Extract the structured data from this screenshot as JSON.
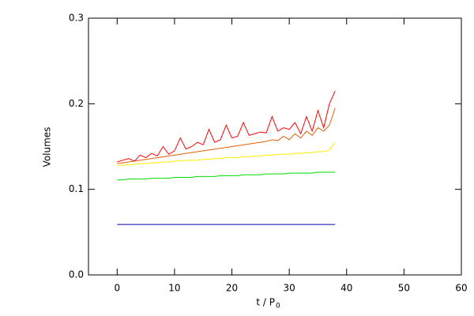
{
  "chart_data": {
    "type": "line",
    "xlabel": "t / P",
    "xlabel_subscript": "0",
    "ylabel": "Volumes",
    "xlim": [
      -5,
      60
    ],
    "xticks": [
      0,
      10,
      20,
      30,
      40,
      50,
      60
    ],
    "ylim": [
      0,
      0.3
    ],
    "yticks": [
      {
        "value": 0,
        "label": "0.0"
      },
      0.1,
      0.2,
      0.3
    ],
    "x": [
      0,
      1,
      2,
      3,
      4,
      5,
      6,
      7,
      8,
      9,
      10,
      11,
      12,
      13,
      14,
      15,
      16,
      17,
      18,
      19,
      20,
      21,
      22,
      23,
      24,
      25,
      26,
      27,
      28,
      29,
      30,
      31,
      32,
      33,
      34,
      35,
      36,
      37,
      38
    ],
    "series": [
      {
        "color": "#ff0000",
        "values": [
          0.132,
          0.134,
          0.136,
          0.133,
          0.14,
          0.137,
          0.142,
          0.139,
          0.15,
          0.141,
          0.145,
          0.16,
          0.147,
          0.15,
          0.155,
          0.152,
          0.17,
          0.155,
          0.158,
          0.175,
          0.16,
          0.162,
          0.178,
          0.163,
          0.165,
          0.167,
          0.166,
          0.185,
          0.168,
          0.172,
          0.17,
          0.178,
          0.165,
          0.185,
          0.168,
          0.192,
          0.172,
          0.2,
          0.215
        ]
      },
      {
        "color": "#e06000",
        "values": [
          0.13,
          0.131,
          0.132,
          0.133,
          0.134,
          0.135,
          0.136,
          0.137,
          0.138,
          0.139,
          0.14,
          0.141,
          0.142,
          0.143,
          0.144,
          0.145,
          0.146,
          0.147,
          0.148,
          0.149,
          0.15,
          0.151,
          0.152,
          0.153,
          0.154,
          0.155,
          0.156,
          0.158,
          0.157,
          0.162,
          0.158,
          0.165,
          0.16,
          0.168,
          0.163,
          0.172,
          0.168,
          0.175,
          0.195
        ]
      },
      {
        "color": "#ffee00",
        "values": [
          0.128,
          0.128,
          0.129,
          0.129,
          0.13,
          0.13,
          0.131,
          0.131,
          0.132,
          0.132,
          0.133,
          0.133,
          0.134,
          0.134,
          0.134,
          0.135,
          0.135,
          0.136,
          0.136,
          0.137,
          0.137,
          0.137,
          0.138,
          0.138,
          0.139,
          0.139,
          0.14,
          0.14,
          0.141,
          0.141,
          0.141,
          0.142,
          0.142,
          0.143,
          0.143,
          0.144,
          0.144,
          0.146,
          0.155
        ]
      },
      {
        "color": "#00dd00",
        "values": [
          0.111,
          0.111,
          0.112,
          0.112,
          0.112,
          0.112,
          0.113,
          0.113,
          0.113,
          0.113,
          0.114,
          0.114,
          0.114,
          0.114,
          0.115,
          0.115,
          0.115,
          0.115,
          0.116,
          0.116,
          0.116,
          0.116,
          0.117,
          0.117,
          0.117,
          0.117,
          0.118,
          0.118,
          0.118,
          0.118,
          0.119,
          0.119,
          0.119,
          0.119,
          0.119,
          0.12,
          0.12,
          0.12,
          0.12
        ]
      },
      {
        "color": "#0000aa",
        "values": [
          0.059,
          0.059,
          0.059,
          0.059,
          0.059,
          0.059,
          0.059,
          0.059,
          0.059,
          0.059,
          0.059,
          0.059,
          0.059,
          0.059,
          0.059,
          0.059,
          0.059,
          0.059,
          0.059,
          0.059,
          0.059,
          0.059,
          0.059,
          0.059,
          0.059,
          0.059,
          0.059,
          0.059,
          0.059,
          0.059,
          0.059,
          0.059,
          0.059,
          0.059,
          0.059,
          0.059,
          0.059,
          0.059,
          0.059
        ]
      }
    ]
  }
}
